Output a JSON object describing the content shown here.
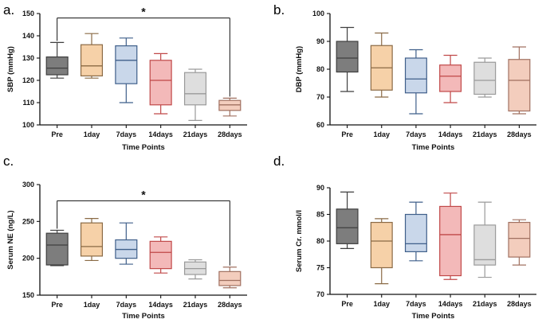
{
  "chart_data": [
    {
      "panel": "a.",
      "type": "box",
      "xlabel": "Time Points",
      "ylabel": "SBP (mmHg)",
      "ylim": [
        100,
        150
      ],
      "yticks": [
        100,
        110,
        120,
        130,
        140,
        150
      ],
      "categories": [
        "Pre",
        "1day",
        "7days",
        "14days",
        "21days",
        "28days"
      ],
      "boxes": [
        {
          "min": 121,
          "q1": 122.5,
          "median": 125.5,
          "q3": 130.5,
          "max": 137
        },
        {
          "min": 121,
          "q1": 122,
          "median": 126.5,
          "q3": 136,
          "max": 141
        },
        {
          "min": 110,
          "q1": 118.5,
          "median": 129,
          "q3": 135.5,
          "max": 139
        },
        {
          "min": 105,
          "q1": 109,
          "median": 120,
          "q3": 129,
          "max": 132
        },
        {
          "min": 102,
          "q1": 109,
          "median": 114,
          "q3": 123.5,
          "max": 125
        },
        {
          "min": 104,
          "q1": 106.5,
          "median": 109,
          "q3": 111,
          "max": 112
        }
      ],
      "significance": {
        "from": "Pre",
        "to": "28days",
        "label": "*",
        "y": 148
      }
    },
    {
      "panel": "b.",
      "type": "box",
      "xlabel": "Time Points",
      "ylabel": "DBP (mmHg)",
      "ylim": [
        60,
        100
      ],
      "yticks": [
        60,
        70,
        80,
        90,
        100
      ],
      "categories": [
        "Pre",
        "1day",
        "7days",
        "14days",
        "21days",
        "28days"
      ],
      "boxes": [
        {
          "min": 72,
          "q1": 79,
          "median": 84,
          "q3": 90,
          "max": 95
        },
        {
          "min": 70,
          "q1": 72.5,
          "median": 80.5,
          "q3": 88.5,
          "max": 93
        },
        {
          "min": 64,
          "q1": 71.5,
          "median": 76.5,
          "q3": 84,
          "max": 87
        },
        {
          "min": 68,
          "q1": 72,
          "median": 77.5,
          "q3": 81.5,
          "max": 85
        },
        {
          "min": 70,
          "q1": 71,
          "median": 76,
          "q3": 82.5,
          "max": 84
        },
        {
          "min": 64,
          "q1": 65,
          "median": 76,
          "q3": 83.5,
          "max": 88
        }
      ]
    },
    {
      "panel": "c.",
      "type": "box",
      "xlabel": "Time Points",
      "ylabel": "Serum NE (ng/L)",
      "ylim": [
        150,
        300
      ],
      "yticks": [
        150,
        200,
        250,
        300
      ],
      "categories": [
        "Pre",
        "1day",
        "7days",
        "14days",
        "21days",
        "28days"
      ],
      "boxes": [
        {
          "min": 190,
          "q1": 191,
          "median": 218,
          "q3": 234,
          "max": 238
        },
        {
          "min": 197,
          "q1": 203,
          "median": 216,
          "q3": 248,
          "max": 254
        },
        {
          "min": 192,
          "q1": 200,
          "median": 212,
          "q3": 225,
          "max": 248
        },
        {
          "min": 180,
          "q1": 186,
          "median": 208,
          "q3": 223,
          "max": 229
        },
        {
          "min": 172,
          "q1": 178,
          "median": 186,
          "q3": 195,
          "max": 198
        },
        {
          "min": 160,
          "q1": 163,
          "median": 170,
          "q3": 182,
          "max": 188
        }
      ],
      "significance": {
        "from": "Pre",
        "to": "28days",
        "label": "*",
        "y": 278
      }
    },
    {
      "panel": "d.",
      "type": "box",
      "xlabel": "Time Points",
      "ylabel": "Serum Cr. mmol/l",
      "ylim": [
        70,
        90
      ],
      "yticks": [
        70,
        75,
        80,
        85,
        90
      ],
      "categories": [
        "Pre",
        "1day",
        "7days",
        "14days",
        "21days",
        "28days"
      ],
      "boxes": [
        {
          "min": 78.6,
          "q1": 79.5,
          "median": 82.5,
          "q3": 86,
          "max": 89.2
        },
        {
          "min": 72,
          "q1": 75,
          "median": 80,
          "q3": 83.5,
          "max": 84.2
        },
        {
          "min": 76.3,
          "q1": 78,
          "median": 79.5,
          "q3": 85,
          "max": 87.3
        },
        {
          "min": 72.8,
          "q1": 73.5,
          "median": 81.2,
          "q3": 86.5,
          "max": 89
        },
        {
          "min": 73.2,
          "q1": 75.5,
          "median": 76.5,
          "q3": 83,
          "max": 87.3
        },
        {
          "min": 75.5,
          "q1": 77,
          "median": 80.5,
          "q3": 83.5,
          "max": 84
        }
      ]
    }
  ],
  "colors": {
    "fills": [
      "#7d7d7d",
      "#f6d1a8",
      "#c9d7ea",
      "#f3b9b9",
      "#dedede",
      "#f3cdbd"
    ],
    "strokes": [
      "#3f3f3f",
      "#8a6a45",
      "#3f5f8a",
      "#c04848",
      "#9a9a9a",
      "#a07060"
    ],
    "axis": "#111111"
  }
}
